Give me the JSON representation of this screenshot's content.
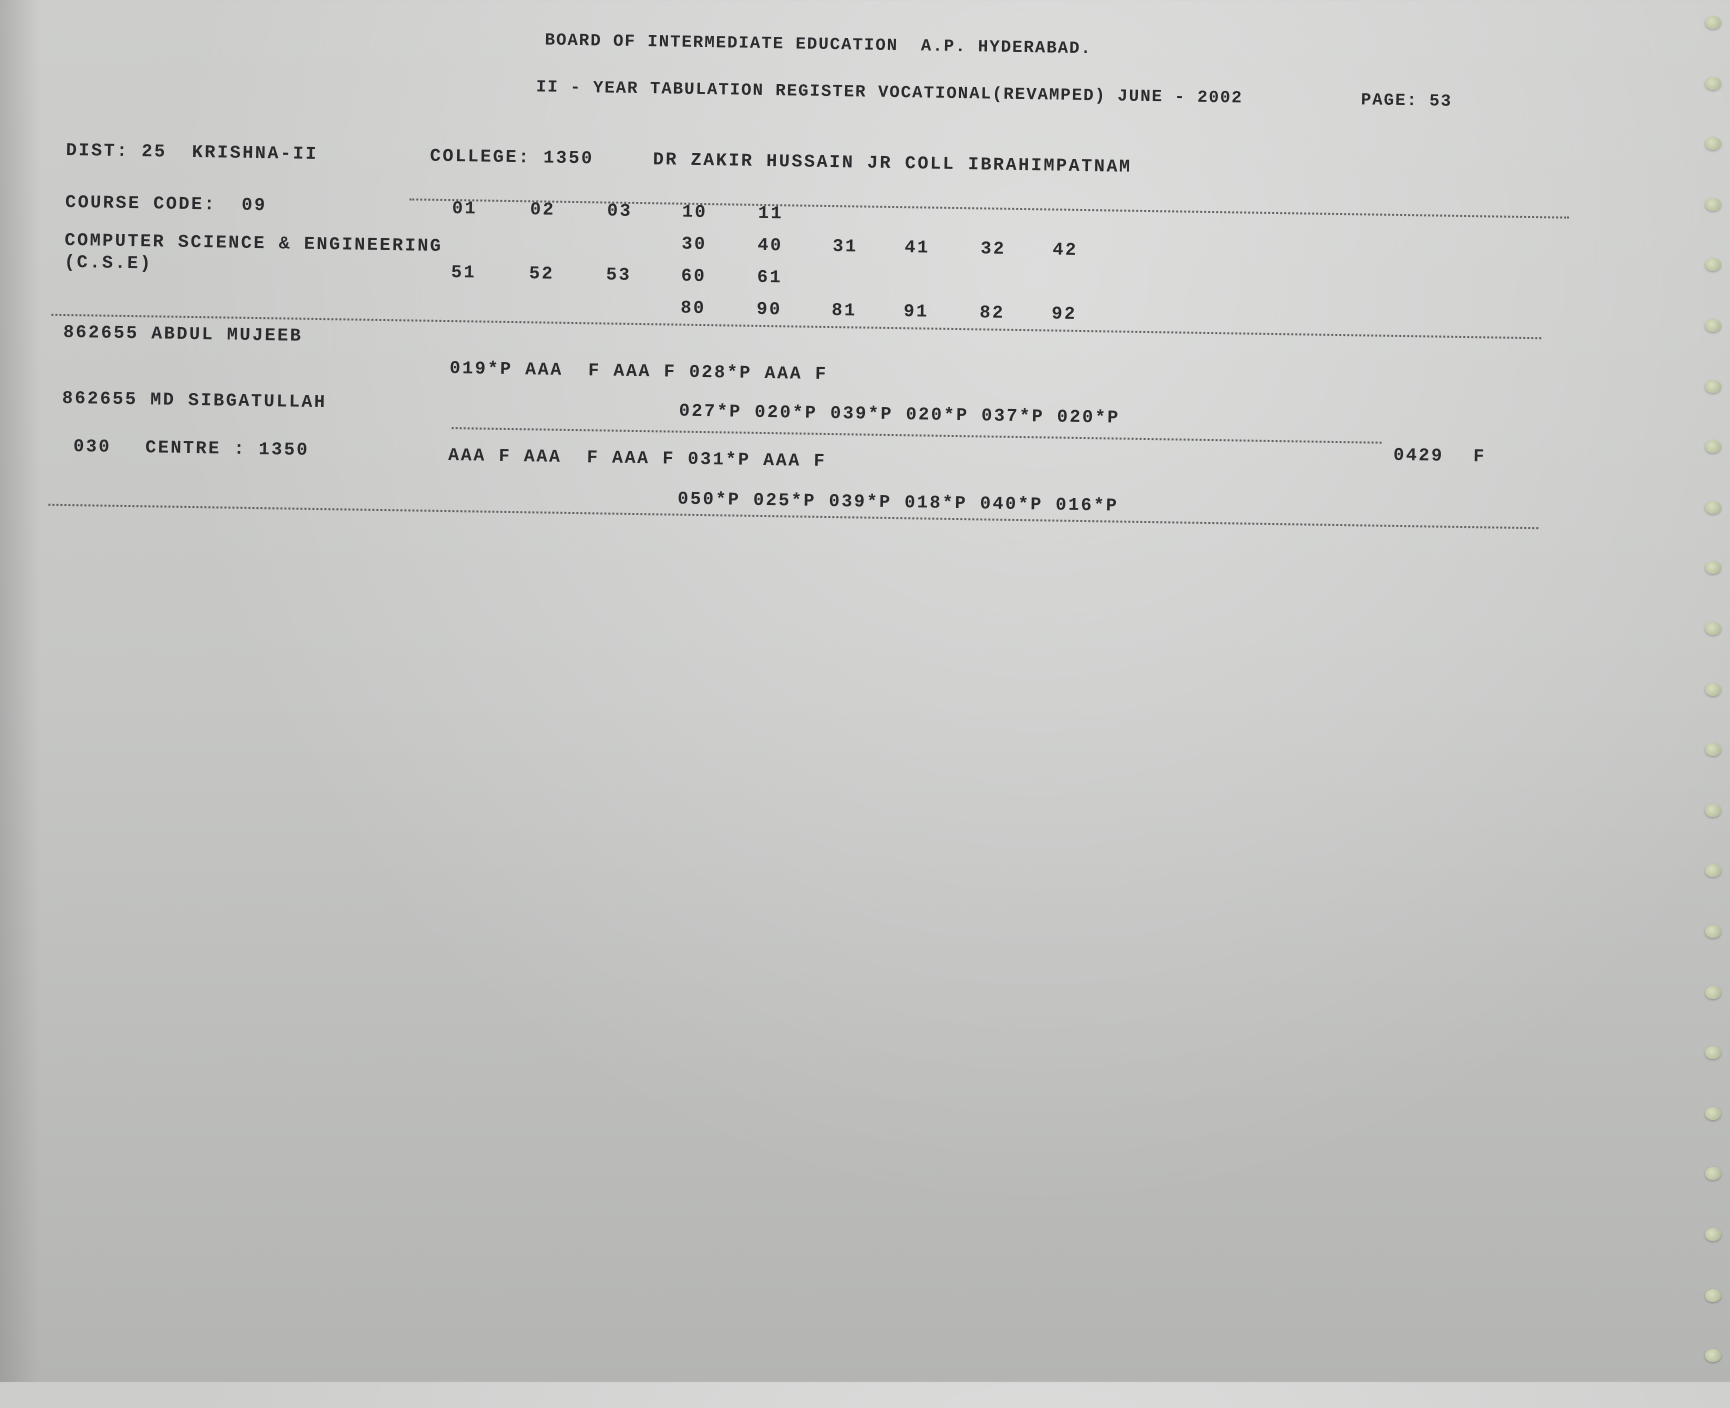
{
  "header": {
    "board": "BOARD OF INTERMEDIATE EDUCATION  A.P. HYDERABAD.",
    "register": "II - YEAR TABULATION REGISTER VOCATIONAL(REVAMPED) JUNE - 2002",
    "page": "PAGE: 53"
  },
  "college_info": {
    "district": "DIST: 25  KRISHNA-II",
    "college": "COLLEGE: 1350",
    "college_name": "DR ZAKIR HUSSAIN JR COLL IBRAHIMPATNAM"
  },
  "course": {
    "code": "COURSE CODE:  09",
    "name": "COMPUTER SCIENCE & ENGINEERING",
    "abbr": "(C.S.E)",
    "subject_rows": [
      [
        "01",
        "02",
        "03",
        "10",
        "11"
      ],
      [
        "30",
        "40",
        "31",
        "41",
        "32",
        "42"
      ],
      [
        "51",
        "52",
        "53",
        "60",
        "61"
      ],
      [
        "80",
        "90",
        "81",
        "91",
        "82",
        "92"
      ]
    ]
  },
  "students": [
    {
      "id_name": "862655 ABDUL MUJEEB",
      "marks": "019*P AAA  F AAA F 028*P AAA F"
    },
    {
      "id_name": "862655 MD SIBGATULLAH",
      "marks": "027*P 020*P 039*P 020*P 037*P 020*P"
    }
  ],
  "centre_row": {
    "number": "030",
    "centre": "CENTRE : 1350",
    "marks_1": "AAA F AAA  F AAA F 031*P AAA F",
    "marks_2": "050*P 025*P 039*P 018*P 040*P 016*P",
    "total": "0429",
    "result": "F"
  },
  "colors": {
    "paper": "#c8c9c7",
    "ink": "#2b2b2e",
    "perforation": "#b3bb9c"
  }
}
